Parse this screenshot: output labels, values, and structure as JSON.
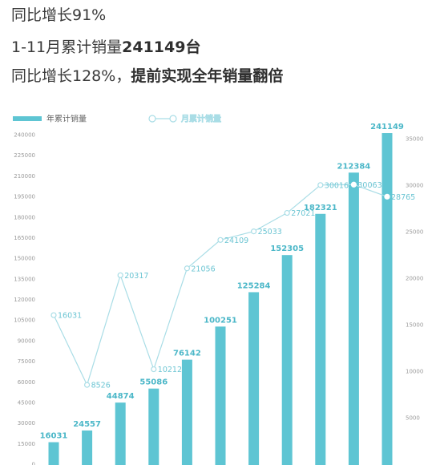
{
  "headlines": {
    "line1": "同比增长91%",
    "line2_prefix": "1-11月累计销量",
    "line2_bold": "241149台",
    "line3_prefix": "同比增长128%，",
    "line3_bold": "提前实现全年销量翻倍"
  },
  "colors": {
    "bar": "#5ec5d3",
    "line": "#a9dde6",
    "point_fill": "#ffffff",
    "text": "#3a3a3a"
  },
  "chart_data": {
    "type": "bar+line",
    "legend_placement": "top-left",
    "series": [
      {
        "name": "年累计销量",
        "type": "bar",
        "axis": "left",
        "values": [
          16031,
          24557,
          44874,
          55086,
          76142,
          100251,
          125284,
          152305,
          182321,
          212384,
          241149
        ]
      },
      {
        "name": "月累计销量",
        "type": "line",
        "axis": "right",
        "values": [
          16031,
          8526,
          20317,
          10212,
          21056,
          24109,
          25033,
          27021,
          30016,
          30063,
          28765
        ]
      }
    ],
    "left_axis": {
      "ticks": [
        "0",
        "15000",
        "30000",
        "45000",
        "60000",
        "75000",
        "90000",
        "105000",
        "120000",
        "135000",
        "150000",
        "165000",
        "180000",
        "195000",
        "210000",
        "225000",
        "240000"
      ],
      "ylim": [
        0,
        240000
      ]
    },
    "right_axis": {
      "ticks": [
        "5000",
        "10000",
        "15000",
        "20000",
        "25000",
        "30000",
        "35000"
      ],
      "ylim": [
        0,
        35000
      ]
    },
    "grid": false
  }
}
